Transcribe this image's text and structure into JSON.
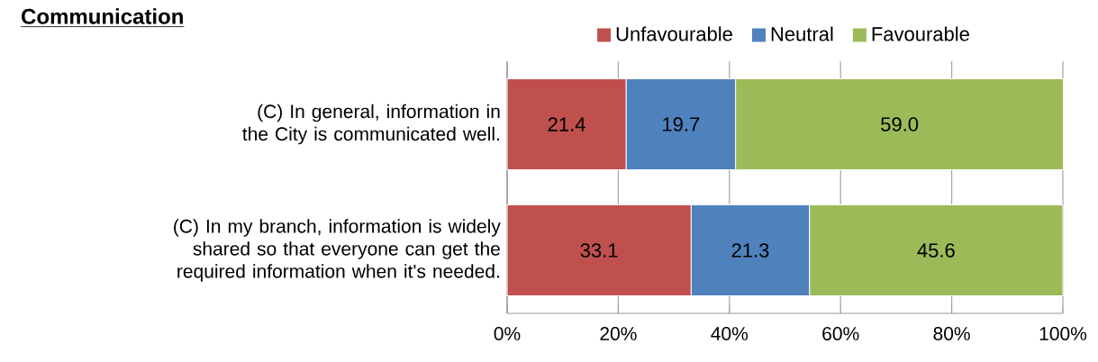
{
  "chart_data": {
    "type": "bar",
    "title": "Communication",
    "orientation": "horizontal",
    "stacked": true,
    "categories": [
      "(C) In general, information in the City is communicated well.",
      "(C) In my branch, information is widely shared so that everyone can get the required information when it's needed."
    ],
    "series": [
      {
        "name": "Unfavourable",
        "color": "#c0504d",
        "values": [
          21.4,
          33.1
        ],
        "value_labels": [
          "21.4",
          "33.1"
        ]
      },
      {
        "name": "Neutral",
        "color": "#4f81bd",
        "values": [
          19.7,
          21.3
        ],
        "value_labels": [
          "19.7",
          "21.3"
        ]
      },
      {
        "name": "Favourable",
        "color": "#9bbb59",
        "values": [
          59.0,
          45.6
        ],
        "value_labels": [
          "59.0",
          "45.6"
        ]
      }
    ],
    "xlim": [
      0,
      100
    ],
    "xticks": [
      {
        "value": 0,
        "label": "0%"
      },
      {
        "value": 20,
        "label": "20%"
      },
      {
        "value": 40,
        "label": "40%"
      },
      {
        "value": 60,
        "label": "60%"
      },
      {
        "value": 80,
        "label": "80%"
      },
      {
        "value": 100,
        "label": "100%"
      }
    ],
    "grid": "x",
    "legend": "top"
  }
}
